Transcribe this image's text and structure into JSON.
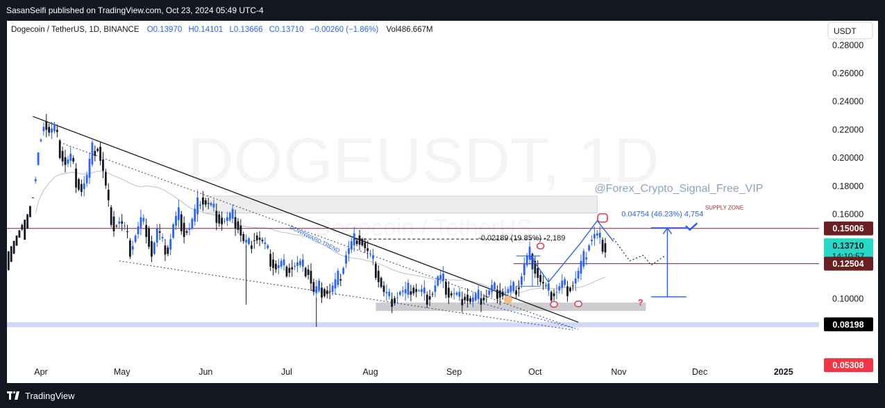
{
  "header": {
    "publish_line": "SasanSeifi published on TradingView.com, Oct 23, 2024 05:49 UTC-4"
  },
  "legend": {
    "symbol": "Dogecoin / TetherUS, 1D, BINANCE",
    "open": "O0.13970",
    "high": "H0.14101",
    "low": "L0.13666",
    "close": "C0.13710",
    "change": "−0.00260 (−1.86%)",
    "volume": "Vol486.667M"
  },
  "currency_button": "USDT",
  "watermark": {
    "symbol": "DOGEUSDT, 1D",
    "name": "Dogecoin / TetherUS"
  },
  "annotations": {
    "signal_handle": "@Forex_Crypto_Signal_Free_VIP",
    "supply_zone": "SUPPLY ZONE",
    "downward_trend": "DOWNWARD TREND",
    "measure_down": "-0.02189 (19.85%) -2,189",
    "measure_up": "0.04754 (46.23%) 4,754",
    "question_mark": "?"
  },
  "price_tags": [
    {
      "value": "0.15006",
      "bg": "#6b1f22",
      "fg": "#ffffff"
    },
    {
      "value": "0.13710",
      "sub": "14:10:57",
      "bg": "#26d9c7",
      "fg": "#0b1f1d"
    },
    {
      "value": "0.12504",
      "bg": "#6b1f22",
      "fg": "#ffffff"
    },
    {
      "value": "0.08198",
      "bg": "#000000",
      "fg": "#ffffff"
    },
    {
      "value": "0.05308",
      "bg": "#f23645",
      "fg": "#ffffff"
    }
  ],
  "footer": {
    "brand": "TradingView"
  },
  "colors": {
    "up": "#2962ff",
    "down": "#131722",
    "trend": "#131722",
    "resistance": "#8b1c25",
    "zone": "#dcdde0",
    "demand": "#c9d4f5",
    "accent": "#2962ff",
    "marker": "#e53950"
  },
  "chart_data": {
    "type": "candlestick",
    "title": "Dogecoin / TetherUS, 1D, BINANCE",
    "y_ticks": [
      0.28,
      0.26,
      0.24,
      0.22,
      0.2,
      0.18,
      0.16,
      0.1
    ],
    "y_tick_labels": [
      "0.28000",
      "0.26000",
      "0.24000",
      "0.22000",
      "0.20000",
      "0.18000",
      "0.16000",
      "0.10000"
    ],
    "ylim": [
      0.05,
      0.285
    ],
    "x_ticks": [
      "Apr",
      "May",
      "Jun",
      "Jul",
      "Aug",
      "Sep",
      "Oct",
      "Nov",
      "Dec",
      "2025"
    ],
    "x_tick_days": [
      1,
      31,
      62,
      92,
      123,
      154,
      184,
      215,
      245,
      276
    ],
    "xlim": [
      -13,
      302
    ],
    "series_close": [
      [
        -13,
        0.13
      ],
      [
        -9,
        0.145
      ],
      [
        -5,
        0.16
      ],
      [
        -3,
        0.172
      ],
      [
        -1,
        0.195
      ],
      [
        0,
        0.212
      ],
      [
        2,
        0.226
      ],
      [
        4,
        0.218
      ],
      [
        6,
        0.22
      ],
      [
        8,
        0.205
      ],
      [
        10,
        0.196
      ],
      [
        12,
        0.2
      ],
      [
        14,
        0.185
      ],
      [
        16,
        0.178
      ],
      [
        18,
        0.186
      ],
      [
        20,
        0.205
      ],
      [
        22,
        0.208
      ],
      [
        24,
        0.19
      ],
      [
        26,
        0.165
      ],
      [
        28,
        0.152
      ],
      [
        30,
        0.155
      ],
      [
        32,
        0.148
      ],
      [
        34,
        0.135
      ],
      [
        36,
        0.146
      ],
      [
        38,
        0.155
      ],
      [
        40,
        0.15
      ],
      [
        42,
        0.132
      ],
      [
        44,
        0.148
      ],
      [
        46,
        0.138
      ],
      [
        48,
        0.135
      ],
      [
        50,
        0.152
      ],
      [
        52,
        0.16
      ],
      [
        54,
        0.148
      ],
      [
        56,
        0.15
      ],
      [
        58,
        0.16
      ],
      [
        60,
        0.172
      ],
      [
        62,
        0.168
      ],
      [
        64,
        0.165
      ],
      [
        66,
        0.16
      ],
      [
        68,
        0.155
      ],
      [
        70,
        0.156
      ],
      [
        72,
        0.158
      ],
      [
        74,
        0.152
      ],
      [
        76,
        0.14
      ],
      [
        78,
        0.138
      ],
      [
        80,
        0.145
      ],
      [
        82,
        0.142
      ],
      [
        84,
        0.136
      ],
      [
        86,
        0.128
      ],
      [
        88,
        0.122
      ],
      [
        90,
        0.124
      ],
      [
        92,
        0.122
      ],
      [
        94,
        0.123
      ],
      [
        96,
        0.124
      ],
      [
        98,
        0.122
      ],
      [
        100,
        0.12
      ],
      [
        102,
        0.104
      ],
      [
        104,
        0.108
      ],
      [
        106,
        0.106
      ],
      [
        108,
        0.105
      ],
      [
        110,
        0.11
      ],
      [
        112,
        0.118
      ],
      [
        114,
        0.132
      ],
      [
        116,
        0.138
      ],
      [
        118,
        0.145
      ],
      [
        120,
        0.14
      ],
      [
        122,
        0.132
      ],
      [
        124,
        0.125
      ],
      [
        126,
        0.115
      ],
      [
        128,
        0.104
      ],
      [
        130,
        0.1
      ],
      [
        132,
        0.101
      ],
      [
        134,
        0.105
      ],
      [
        136,
        0.103
      ],
      [
        138,
        0.108
      ],
      [
        140,
        0.106
      ],
      [
        142,
        0.104
      ],
      [
        144,
        0.102
      ],
      [
        146,
        0.105
      ],
      [
        148,
        0.114
      ],
      [
        150,
        0.112
      ],
      [
        152,
        0.104
      ],
      [
        154,
        0.103
      ],
      [
        156,
        0.1
      ],
      [
        158,
        0.103
      ],
      [
        160,
        0.098
      ],
      [
        162,
        0.1
      ],
      [
        164,
        0.101
      ],
      [
        166,
        0.103
      ],
      [
        168,
        0.107
      ],
      [
        170,
        0.106
      ],
      [
        172,
        0.104
      ],
      [
        174,
        0.105
      ],
      [
        176,
        0.106
      ],
      [
        178,
        0.11
      ],
      [
        180,
        0.124
      ],
      [
        182,
        0.132
      ],
      [
        184,
        0.122
      ],
      [
        186,
        0.112
      ],
      [
        188,
        0.106
      ],
      [
        190,
        0.104
      ],
      [
        192,
        0.106
      ],
      [
        194,
        0.11
      ],
      [
        196,
        0.108
      ],
      [
        198,
        0.111
      ],
      [
        200,
        0.118
      ],
      [
        202,
        0.128
      ],
      [
        204,
        0.141
      ],
      [
        206,
        0.145
      ],
      [
        208,
        0.142
      ],
      [
        210,
        0.137
      ]
    ],
    "levels": {
      "resistance_1": 0.15006,
      "current_price": 0.1371,
      "resistance_2": 0.12504,
      "support": 0.08198,
      "low_tag": 0.05308,
      "supply_zone": [
        0.161,
        0.173
      ],
      "demand_zone": [
        0.0915,
        0.0975
      ],
      "demand_lower": [
        0.08,
        0.0835
      ]
    }
  }
}
